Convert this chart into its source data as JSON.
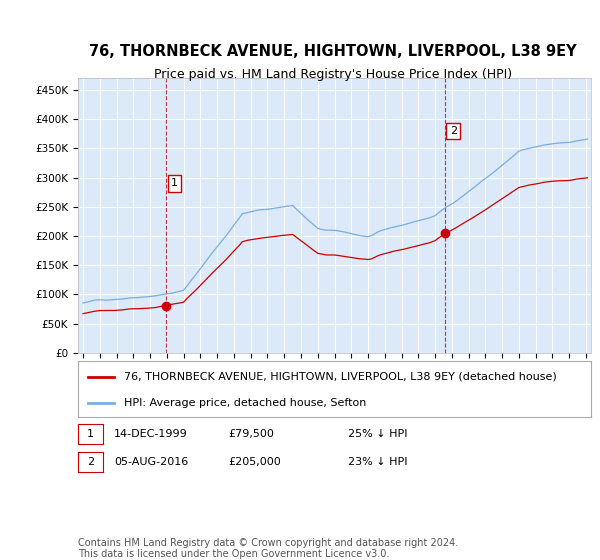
{
  "title": "76, THORNBECK AVENUE, HIGHTOWN, LIVERPOOL, L38 9EY",
  "subtitle": "Price paid vs. HM Land Registry's House Price Index (HPI)",
  "ylim": [
    0,
    470000
  ],
  "xlim_start": 1994.7,
  "xlim_end": 2025.3,
  "plot_bg_color": "#dce9f8",
  "grid_color": "#ffffff",
  "red_line_color": "#cc0000",
  "blue_line_color": "#7aade0",
  "marker1_x": 1999.96,
  "marker1_y": 79500,
  "marker1_label": "1",
  "marker2_x": 2016.59,
  "marker2_y": 205000,
  "marker2_label": "2",
  "vline1_x": 1999.96,
  "vline2_x": 2016.59,
  "legend_red": "76, THORNBECK AVENUE, HIGHTOWN, LIVERPOOL, L38 9EY (detached house)",
  "legend_blue": "HPI: Average price, detached house, Sefton",
  "table_row1": [
    "1",
    "14-DEC-1999",
    "£79,500",
    "25% ↓ HPI"
  ],
  "table_row2": [
    "2",
    "05-AUG-2016",
    "£205,000",
    "23% ↓ HPI"
  ],
  "footer": "Contains HM Land Registry data © Crown copyright and database right 2024.\nThis data is licensed under the Open Government Licence v3.0.",
  "title_fontsize": 10.5,
  "subtitle_fontsize": 9,
  "tick_fontsize": 7.5,
  "legend_fontsize": 8,
  "table_fontsize": 8,
  "footer_fontsize": 7
}
